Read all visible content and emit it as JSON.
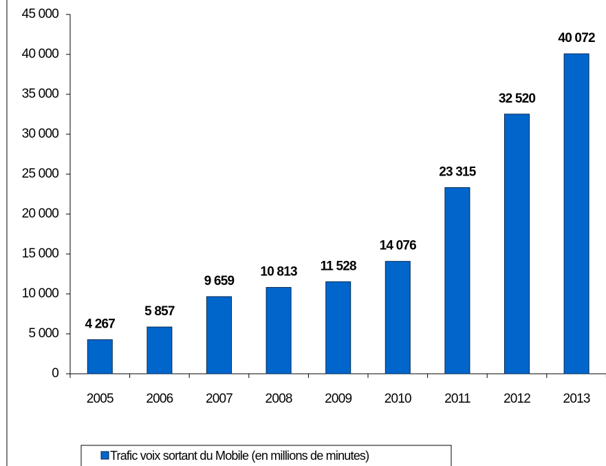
{
  "chart_data": {
    "type": "bar",
    "categories": [
      "2005",
      "2006",
      "2007",
      "2008",
      "2009",
      "2010",
      "2011",
      "2012",
      "2013"
    ],
    "series": [
      {
        "name": "Trafic voix sortant du Mobile (en millions de minutes)",
        "color": "#0066cc",
        "values": [
          4267,
          5857,
          9659,
          10813,
          11528,
          14076,
          23315,
          32520,
          40072
        ],
        "value_labels": [
          "4 267",
          "5 857",
          "9 659",
          "10 813",
          "11 528",
          "14 076",
          "23 315",
          "32 520",
          "40 072"
        ]
      }
    ],
    "ylim": [
      0,
      45000
    ],
    "yticks": [
      0,
      {
        "value": 5000,
        "label": "5 000"
      },
      {
        "value": 10000,
        "label": "10 000"
      },
      {
        "value": 15000,
        "label": "15 000"
      },
      {
        "value": 20000,
        "label": "20 000"
      },
      {
        "value": 25000,
        "label": "25 000"
      },
      {
        "value": 30000,
        "label": "30 000"
      },
      {
        "value": 35000,
        "label": "35 000"
      },
      {
        "value": 40000,
        "label": "40 000"
      },
      {
        "value": 45000,
        "label": "45 000"
      }
    ],
    "legend": "bottom",
    "grid": false
  }
}
